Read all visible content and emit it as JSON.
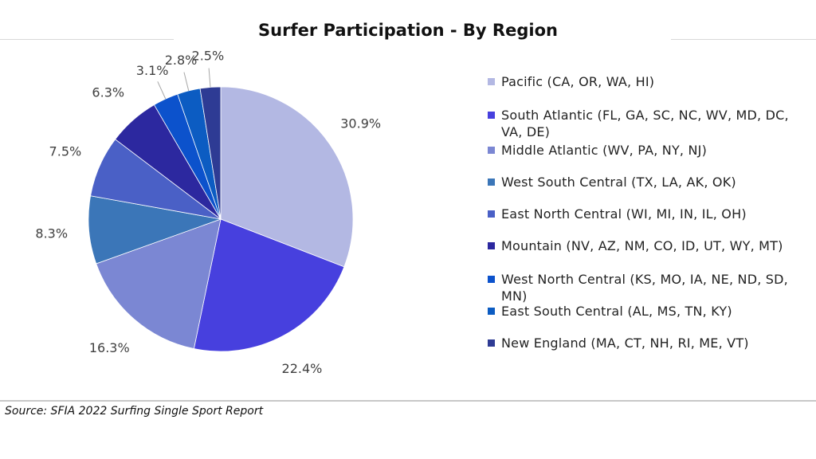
{
  "chart_data": {
    "type": "pie",
    "title": "Surfer Participation  - By Region",
    "source": "Source: SFIA 2022 Surfing Single Sport Report",
    "legend_position": "right",
    "slices": [
      {
        "label": "Pacific (CA, OR, WA, HI)",
        "value": 30.9,
        "display": "30.9%",
        "color": "#b3b8e3"
      },
      {
        "label": "South Atlantic (FL, GA, SC, NC, WV, MD, DC, VA, DE)",
        "value": 22.4,
        "display": "22.4%",
        "color": "#4740de"
      },
      {
        "label": "Middle Atlantic (WV, PA, NY, NJ)",
        "value": 16.3,
        "display": "16.3%",
        "color": "#7b87d3"
      },
      {
        "label": "West South Central (TX, LA, AK, OK)",
        "value": 8.3,
        "display": "8.3%",
        "color": "#3b76b8"
      },
      {
        "label": "East North Central (WI, MI, IN, IL, OH)",
        "value": 7.5,
        "display": "7.5%",
        "color": "#4a60c6"
      },
      {
        "label": "Mountain (NV, AZ, NM, CO, ID, UT, WY, MT)",
        "value": 6.3,
        "display": "6.3%",
        "color": "#2c289f"
      },
      {
        "label": "West North Central (KS, MO, IA, NE, ND, SD, MN)",
        "value": 3.1,
        "display": "3.1%",
        "color": "#0c52cc"
      },
      {
        "label": "East South Central (AL, MS, TN, KY)",
        "value": 2.8,
        "display": "2.8%",
        "color": "#0c5cc2"
      },
      {
        "label": "New England (MA, CT, NH, RI, ME, VT)",
        "value": 2.5,
        "display": "2.5%",
        "color": "#2e3b94"
      }
    ]
  }
}
